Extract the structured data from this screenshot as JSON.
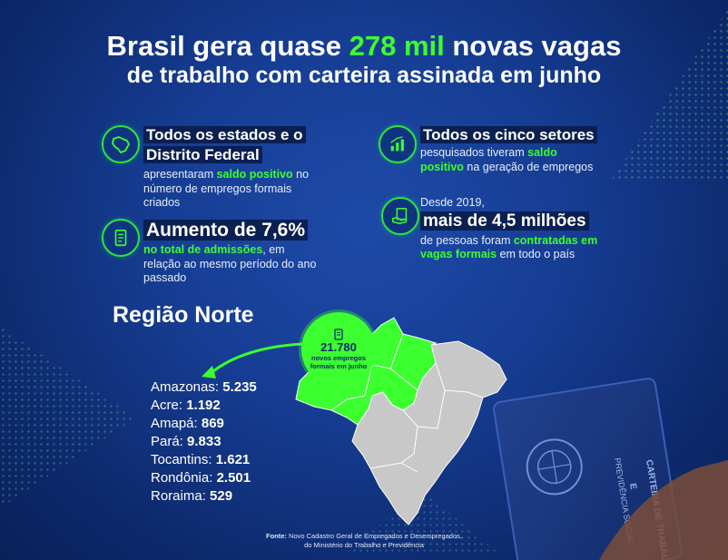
{
  "title": {
    "line1_pre": "Brasil gera quase ",
    "line1_highlight": "278 mil",
    "line1_post": " novas vagas",
    "line2": "de trabalho com carteira assinada em junho"
  },
  "facts": {
    "states": {
      "heading": "Todos os estados e o Distrito Federal",
      "text_pre": "apresentaram ",
      "text_highlight": "saldo positivo",
      "text_post": " no número de empregos formais criados"
    },
    "admissions": {
      "heading": "Aumento de 7,6%",
      "text_highlight": "no total de admissões",
      "text_post": ", em relação ao mesmo período do ano passado"
    },
    "sectors": {
      "heading": "Todos os cinco setores",
      "text_pre": "pesquisados tiveram ",
      "text_highlight": "saldo positivo",
      "text_post": " na geração de empregos"
    },
    "millions": {
      "intro": "Desde 2019,",
      "heading": "mais de 4,5 milhões",
      "text_pre": "de pessoas foram ",
      "text_highlight": "contratadas em vagas formais",
      "text_post": " em todo o país"
    }
  },
  "region": {
    "title": "Região Norte",
    "badge_number": "21.780",
    "badge_label": "novos empregos formais em junho",
    "states": [
      {
        "name": "Amazonas:",
        "value": "5.235"
      },
      {
        "name": "Acre:",
        "value": "1.192"
      },
      {
        "name": "Amapá:",
        "value": "869"
      },
      {
        "name": "Pará:",
        "value": "9.833"
      },
      {
        "name": "Tocantins:",
        "value": "1.621"
      },
      {
        "name": "Rondônia:",
        "value": "2.501"
      },
      {
        "name": "Roraima:",
        "value": "529"
      }
    ]
  },
  "card": {
    "line1": "CARTEIRA DE TRABALHO",
    "line2": "E",
    "line3": "PREVIDÊNCIA SOCIAL"
  },
  "source": {
    "label": "Fonte:",
    "line1": " Novo Cadastro Geral de Empregados e Desempregados,",
    "line2": "do Ministério do Trabalho e Previdência"
  },
  "colors": {
    "accent": "#3bff2f",
    "background": "#163d93",
    "map_other": "#c8c8c8"
  },
  "icons": [
    "brazil-map-icon",
    "document-icon",
    "bar-chart-icon",
    "hand-card-icon"
  ]
}
